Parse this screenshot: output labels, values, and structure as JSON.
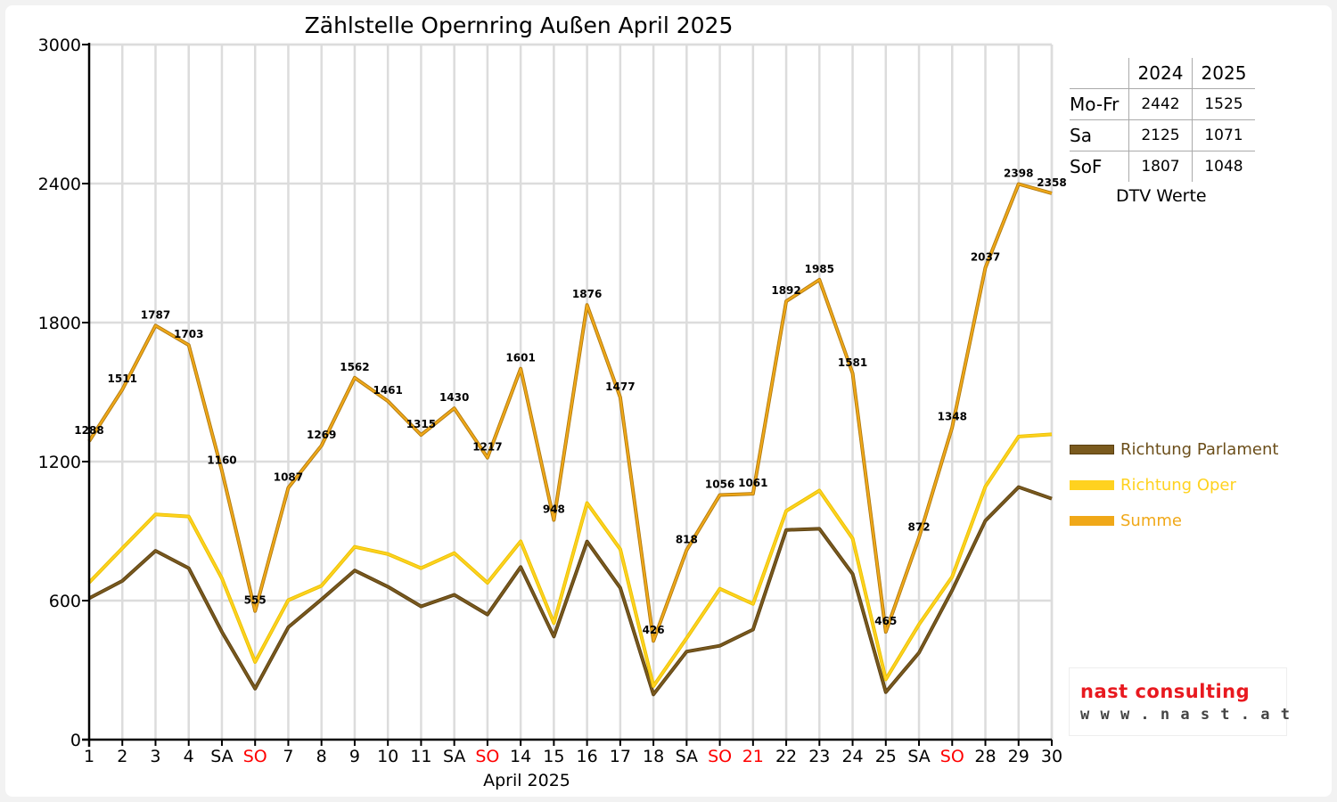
{
  "chart_data": {
    "type": "line",
    "title": "Zählstelle Opernring Außen April 2025",
    "xlabel": "April 2025",
    "ylabel": "",
    "ylim": [
      0,
      3000
    ],
    "yticks": [
      "0",
      "600",
      "1200",
      "1800",
      "2400",
      "3000"
    ],
    "grid": true,
    "legend_position": "right",
    "categories": [
      "1",
      "2",
      "3",
      "4",
      "SA",
      "SO",
      "7",
      "8",
      "9",
      "10",
      "11",
      "SA",
      "SO",
      "14",
      "15",
      "16",
      "17",
      "18",
      "SA",
      "SO",
      "21",
      "22",
      "23",
      "24",
      "25",
      "SA",
      "SO",
      "28",
      "29",
      "30"
    ],
    "highlight_categories": [
      "SO",
      "21"
    ],
    "series": [
      {
        "name": "Richtung Parlament",
        "color": "#7a5a1e",
        "values": [
          610,
          685,
          815,
          740,
          465,
          220,
          485,
          605,
          730,
          660,
          575,
          625,
          540,
          745,
          445,
          855,
          655,
          195,
          380,
          405,
          475,
          905,
          910,
          715,
          205,
          375,
          645,
          945,
          1090,
          1040
        ]
      },
      {
        "name": "Richtung Oper",
        "color": "#ffd21f",
        "values": [
          678,
          826,
          972,
          963,
          696,
          335,
          602,
          664,
          832,
          801,
          740,
          805,
          677,
          856,
          503,
          1021,
          822,
          231,
          438,
          651,
          586,
          987,
          1075,
          868,
          260,
          497,
          703,
          1092,
          1308,
          1318
        ]
      },
      {
        "name": "Summe",
        "color": "#f0a818",
        "values": [
          1288,
          1511,
          1787,
          1703,
          1160,
          555,
          1087,
          1269,
          1562,
          1461,
          1315,
          1430,
          1217,
          1601,
          948,
          1876,
          1477,
          426,
          818,
          1056,
          1061,
          1892,
          1985,
          1581,
          465,
          872,
          1348,
          2037,
          2398,
          2358
        ],
        "labels": [
          "1288",
          "1511",
          "1787",
          "1703",
          "1160",
          "555",
          "1087",
          "1269",
          "1562",
          "1461",
          "1315",
          "1430",
          "1217",
          "1601",
          "948",
          "1876",
          "1477",
          "426",
          "818",
          "1056",
          "1061",
          "1892",
          "1985",
          "1581",
          "465",
          "872",
          "1348",
          "2037",
          "2398",
          "2358"
        ]
      }
    ]
  },
  "dtv_table": {
    "caption": "DTV Werte",
    "columns": [
      "2024",
      "2025"
    ],
    "rows": [
      {
        "label": "Mo-Fr",
        "values": [
          "2442",
          "1525"
        ]
      },
      {
        "label": "Sa",
        "values": [
          "2125",
          "1071"
        ]
      },
      {
        "label": "SoF",
        "values": [
          "1807",
          "1048"
        ]
      }
    ]
  },
  "logo": {
    "name": "nast consulting",
    "url": "w w w . n a s t . a t"
  },
  "colors": {
    "grid": "#dcdcdc",
    "axis": "#000000",
    "holiday": "#ff0000",
    "logo_red": "#e8191f",
    "logo_dark": "#444444"
  }
}
